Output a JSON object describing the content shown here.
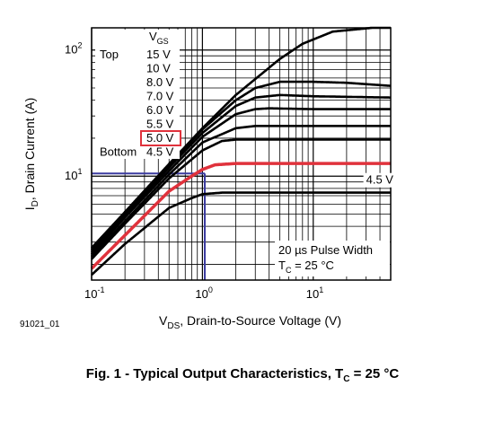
{
  "chart_data": {
    "type": "line",
    "x_scale": "log",
    "y_scale": "log",
    "xlim": [
      0.1,
      50
    ],
    "ylim": [
      1.5,
      150
    ],
    "grid": true,
    "x_ticks": [
      {
        "value": 0.1,
        "base": "10",
        "exp": "-1"
      },
      {
        "value": 1,
        "base": "10",
        "exp": "0"
      },
      {
        "value": 10,
        "base": "10",
        "exp": "1"
      }
    ],
    "y_ticks": [
      {
        "value": 10,
        "base": "10",
        "exp": "1"
      },
      {
        "value": 100,
        "base": "10",
        "exp": "2"
      }
    ],
    "xlabel": {
      "main": "V",
      "sub": "DS",
      "rest": ", Drain-to-Source Voltage (V)"
    },
    "ylabel": {
      "main": "I",
      "sub": "D",
      "rest": ", Drain Current (A)"
    },
    "legend": {
      "header_main": "V",
      "header_sub": "GS",
      "top_label": "Top",
      "bottom_label": "Bottom",
      "entries": [
        "15 V",
        "10 V",
        "8.0 V",
        "7.0 V",
        "6.0 V",
        "5.5 V",
        "5.0 V",
        "4.5 V"
      ],
      "highlighted": "5.0 V"
    },
    "series": [
      {
        "name": "15 V",
        "color": "#000000",
        "x": [
          0.1,
          0.2,
          0.5,
          1,
          2,
          5,
          8,
          15,
          50
        ],
        "y": [
          2.7,
          5.2,
          12.5,
          24,
          44,
          85,
          112,
          140,
          155
        ]
      },
      {
        "name": "10 V",
        "color": "#000000",
        "x": [
          0.1,
          0.2,
          0.5,
          1,
          2,
          3,
          5,
          10,
          20,
          50
        ],
        "y": [
          2.6,
          5.1,
          12.2,
          23.5,
          40,
          50,
          56,
          56,
          55,
          52
        ]
      },
      {
        "name": "8.0 V",
        "color": "#000000",
        "x": [
          0.1,
          0.2,
          0.5,
          1,
          2,
          3,
          5,
          10,
          50
        ],
        "y": [
          2.5,
          4.9,
          11.7,
          22,
          36,
          42,
          44,
          43,
          42
        ]
      },
      {
        "name": "7.0 V",
        "color": "#000000",
        "x": [
          0.1,
          0.2,
          0.5,
          1,
          2,
          3,
          4,
          10,
          50
        ],
        "y": [
          2.4,
          4.7,
          11,
          20.5,
          31,
          34,
          34.5,
          34,
          34
        ]
      },
      {
        "name": "6.0 V",
        "color": "#000000",
        "x": [
          0.1,
          0.2,
          0.5,
          1,
          2,
          3,
          10,
          50
        ],
        "y": [
          2.3,
          4.4,
          10.3,
          18.5,
          24,
          25,
          25,
          25
        ]
      },
      {
        "name": "5.5 V",
        "color": "#000000",
        "x": [
          0.1,
          0.2,
          0.5,
          1,
          1.5,
          2,
          3,
          50
        ],
        "y": [
          2.2,
          4.2,
          9.6,
          16,
          19,
          19.5,
          19.5,
          19.5
        ]
      },
      {
        "name": "5.0 V",
        "color": "#e0323c",
        "x": [
          0.1,
          0.2,
          0.5,
          0.8,
          1,
          1.3,
          2,
          50
        ],
        "y": [
          1.85,
          3.4,
          7.6,
          10,
          11.3,
          12.3,
          12.6,
          12.6
        ]
      },
      {
        "name": "4.5 V",
        "color": "#000000",
        "x": [
          0.1,
          0.2,
          0.5,
          0.8,
          1,
          1.5,
          2,
          50
        ],
        "y": [
          1.65,
          2.9,
          5.6,
          6.7,
          7.2,
          7.4,
          7.4,
          7.4
        ]
      }
    ],
    "guide_lines": {
      "color": "#3c3ca0",
      "x_value": 1.05,
      "y_value": 10.5
    },
    "annotations": {
      "curve_label": "4.5 V",
      "curve_label_x": 30,
      "curve_label_y": 8.7,
      "note_line1": "20 µs Pulse Width",
      "note_line2_main": "T",
      "note_line2_sub": "C",
      "note_line2_rest": " = 25 °C"
    }
  },
  "figure_id": "91021_01",
  "caption": {
    "prefix": "Fig. 1 - Typical Output Characteristics, T",
    "sub": "C",
    "suffix": " = 25 °C"
  }
}
